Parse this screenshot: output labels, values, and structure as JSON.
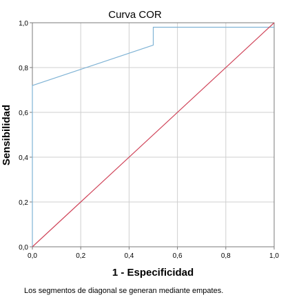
{
  "chart_data": {
    "type": "line",
    "title": "Curva COR",
    "xlabel": "1 - Especificidad",
    "ylabel": "Sensibilidad",
    "footnote": "Los segmentos de diagonal se generan mediante empates.",
    "xlim": [
      0,
      1
    ],
    "ylim": [
      0,
      1
    ],
    "x_ticks": [
      0,
      0.2,
      0.4,
      0.6,
      0.8,
      1.0
    ],
    "y_ticks": [
      0,
      0.2,
      0.4,
      0.6,
      0.8,
      1.0
    ],
    "x_tick_labels": [
      "0,0",
      "0,2",
      "0,4",
      "0,6",
      "0,8",
      "1,0"
    ],
    "y_tick_labels": [
      "0,0",
      "0,2",
      "0,4",
      "0,6",
      "0,8",
      "1,0"
    ],
    "grid": true,
    "series": [
      {
        "color": "#7fb3d5",
        "x": [
          0,
          0,
          0.5,
          0.5,
          1.0
        ],
        "y": [
          0,
          0.72,
          0.9,
          0.98,
          0.98
        ]
      },
      {
        "color": "#d0455a",
        "x": [
          0,
          1.0
        ],
        "y": [
          0,
          1.0
        ]
      }
    ]
  }
}
